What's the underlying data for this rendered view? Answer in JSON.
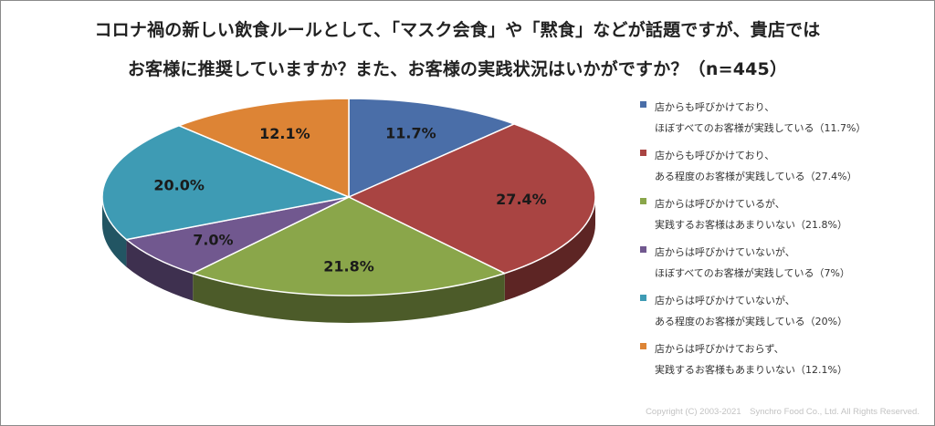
{
  "title": {
    "line1": "コロナ禍の新しい飲食ルールとして、「マスク会食」や「黙食」などが話題ですが、貴店では",
    "line2": "お客様に推奨していますか？また、お客様の実践状況はいかがですか？（n=445）"
  },
  "chart_data": {
    "type": "pie",
    "variant": "3d-tilted",
    "start": "12 o'clock",
    "direction": "clockwise",
    "legend_position": "right",
    "slices": [
      {
        "value": 11.7,
        "data_label": "11.7%",
        "color": "#4a6ea8",
        "legend": [
          "店からも呼びかけており、",
          "ほぼすべてのお客様が実践している（11.7%）"
        ]
      },
      {
        "value": 27.4,
        "data_label": "27.4%",
        "color": "#a94442",
        "legend": [
          "店からも呼びかけており、",
          "ある程度のお客様が実践している（27.4%）"
        ]
      },
      {
        "value": 21.8,
        "data_label": "21.8%",
        "color": "#8aa64a",
        "legend": [
          "店からは呼びかけているが、",
          "実践するお客様はあまりいない（21.8%）"
        ]
      },
      {
        "value": 7.0,
        "data_label": "7.0%",
        "color": "#71588f",
        "legend": [
          "店からは呼びかけていないが、",
          "ほぼすべてのお客様が実践している（7%）"
        ]
      },
      {
        "value": 20.0,
        "data_label": "20.0%",
        "color": "#3e9bb4",
        "legend": [
          "店からは呼びかけていないが、",
          "ある程度のお客様が実践している（20%）"
        ]
      },
      {
        "value": 12.1,
        "data_label": "12.1%",
        "color": "#dd8435",
        "legend": [
          "店からは呼びかけておらず、",
          "実践するお客様もあまりいない（12.1%）"
        ]
      }
    ]
  },
  "copyright": "Copyright (C) 2003-2021　Synchro Food Co., Ltd. All Rights Reserved."
}
